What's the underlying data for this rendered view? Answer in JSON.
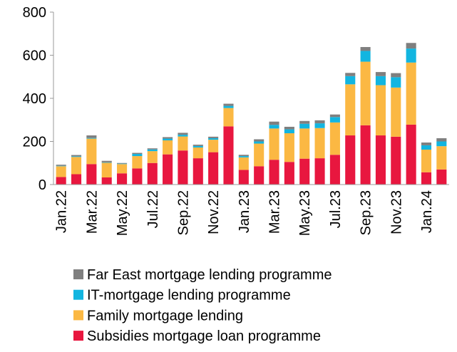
{
  "chart_data": {
    "type": "stacked_bar",
    "categories": [
      "Jan.22",
      null,
      "Mar.22",
      null,
      "May.22",
      null,
      "Jul.22",
      null,
      "Sep.22",
      null,
      "Nov.22",
      null,
      "Jan.23",
      null,
      "Mar.23",
      null,
      "May.23",
      null,
      "Jul.23",
      null,
      "Sep.23",
      null,
      "Nov.23",
      null,
      "Jan.24",
      null
    ],
    "series": [
      {
        "name": "Subsidies mortgage loan programme",
        "color": "#e8173f",
        "values": [
          35,
          48,
          95,
          33,
          52,
          75,
          100,
          140,
          158,
          122,
          150,
          270,
          68,
          85,
          115,
          105,
          120,
          122,
          138,
          228,
          275,
          228,
          222,
          278,
          57,
          70
        ]
      },
      {
        "name": "Family mortgage lending",
        "color": "#fbb843",
        "values": [
          50,
          80,
          118,
          68,
          43,
          57,
          55,
          65,
          65,
          50,
          58,
          85,
          58,
          105,
          145,
          133,
          140,
          140,
          150,
          237,
          295,
          233,
          228,
          288,
          105,
          108
        ]
      },
      {
        "name": "IT-mortgage lending programme",
        "color": "#12b5e0",
        "values": [
          2,
          3,
          3,
          2,
          2,
          10,
          8,
          8,
          8,
          7,
          7,
          10,
          6,
          10,
          17,
          18,
          22,
          22,
          25,
          38,
          50,
          42,
          48,
          65,
          20,
          22
        ]
      },
      {
        "name": "Far East mortgage lending programme",
        "color": "#7f7f7f",
        "values": [
          5,
          6,
          12,
          7,
          3,
          5,
          5,
          7,
          9,
          6,
          7,
          10,
          6,
          10,
          15,
          12,
          13,
          14,
          12,
          15,
          18,
          19,
          19,
          26,
          13,
          15
        ]
      }
    ],
    "ylim": [
      0,
      800
    ],
    "yticks": [
      0,
      200,
      400,
      600,
      800
    ]
  }
}
